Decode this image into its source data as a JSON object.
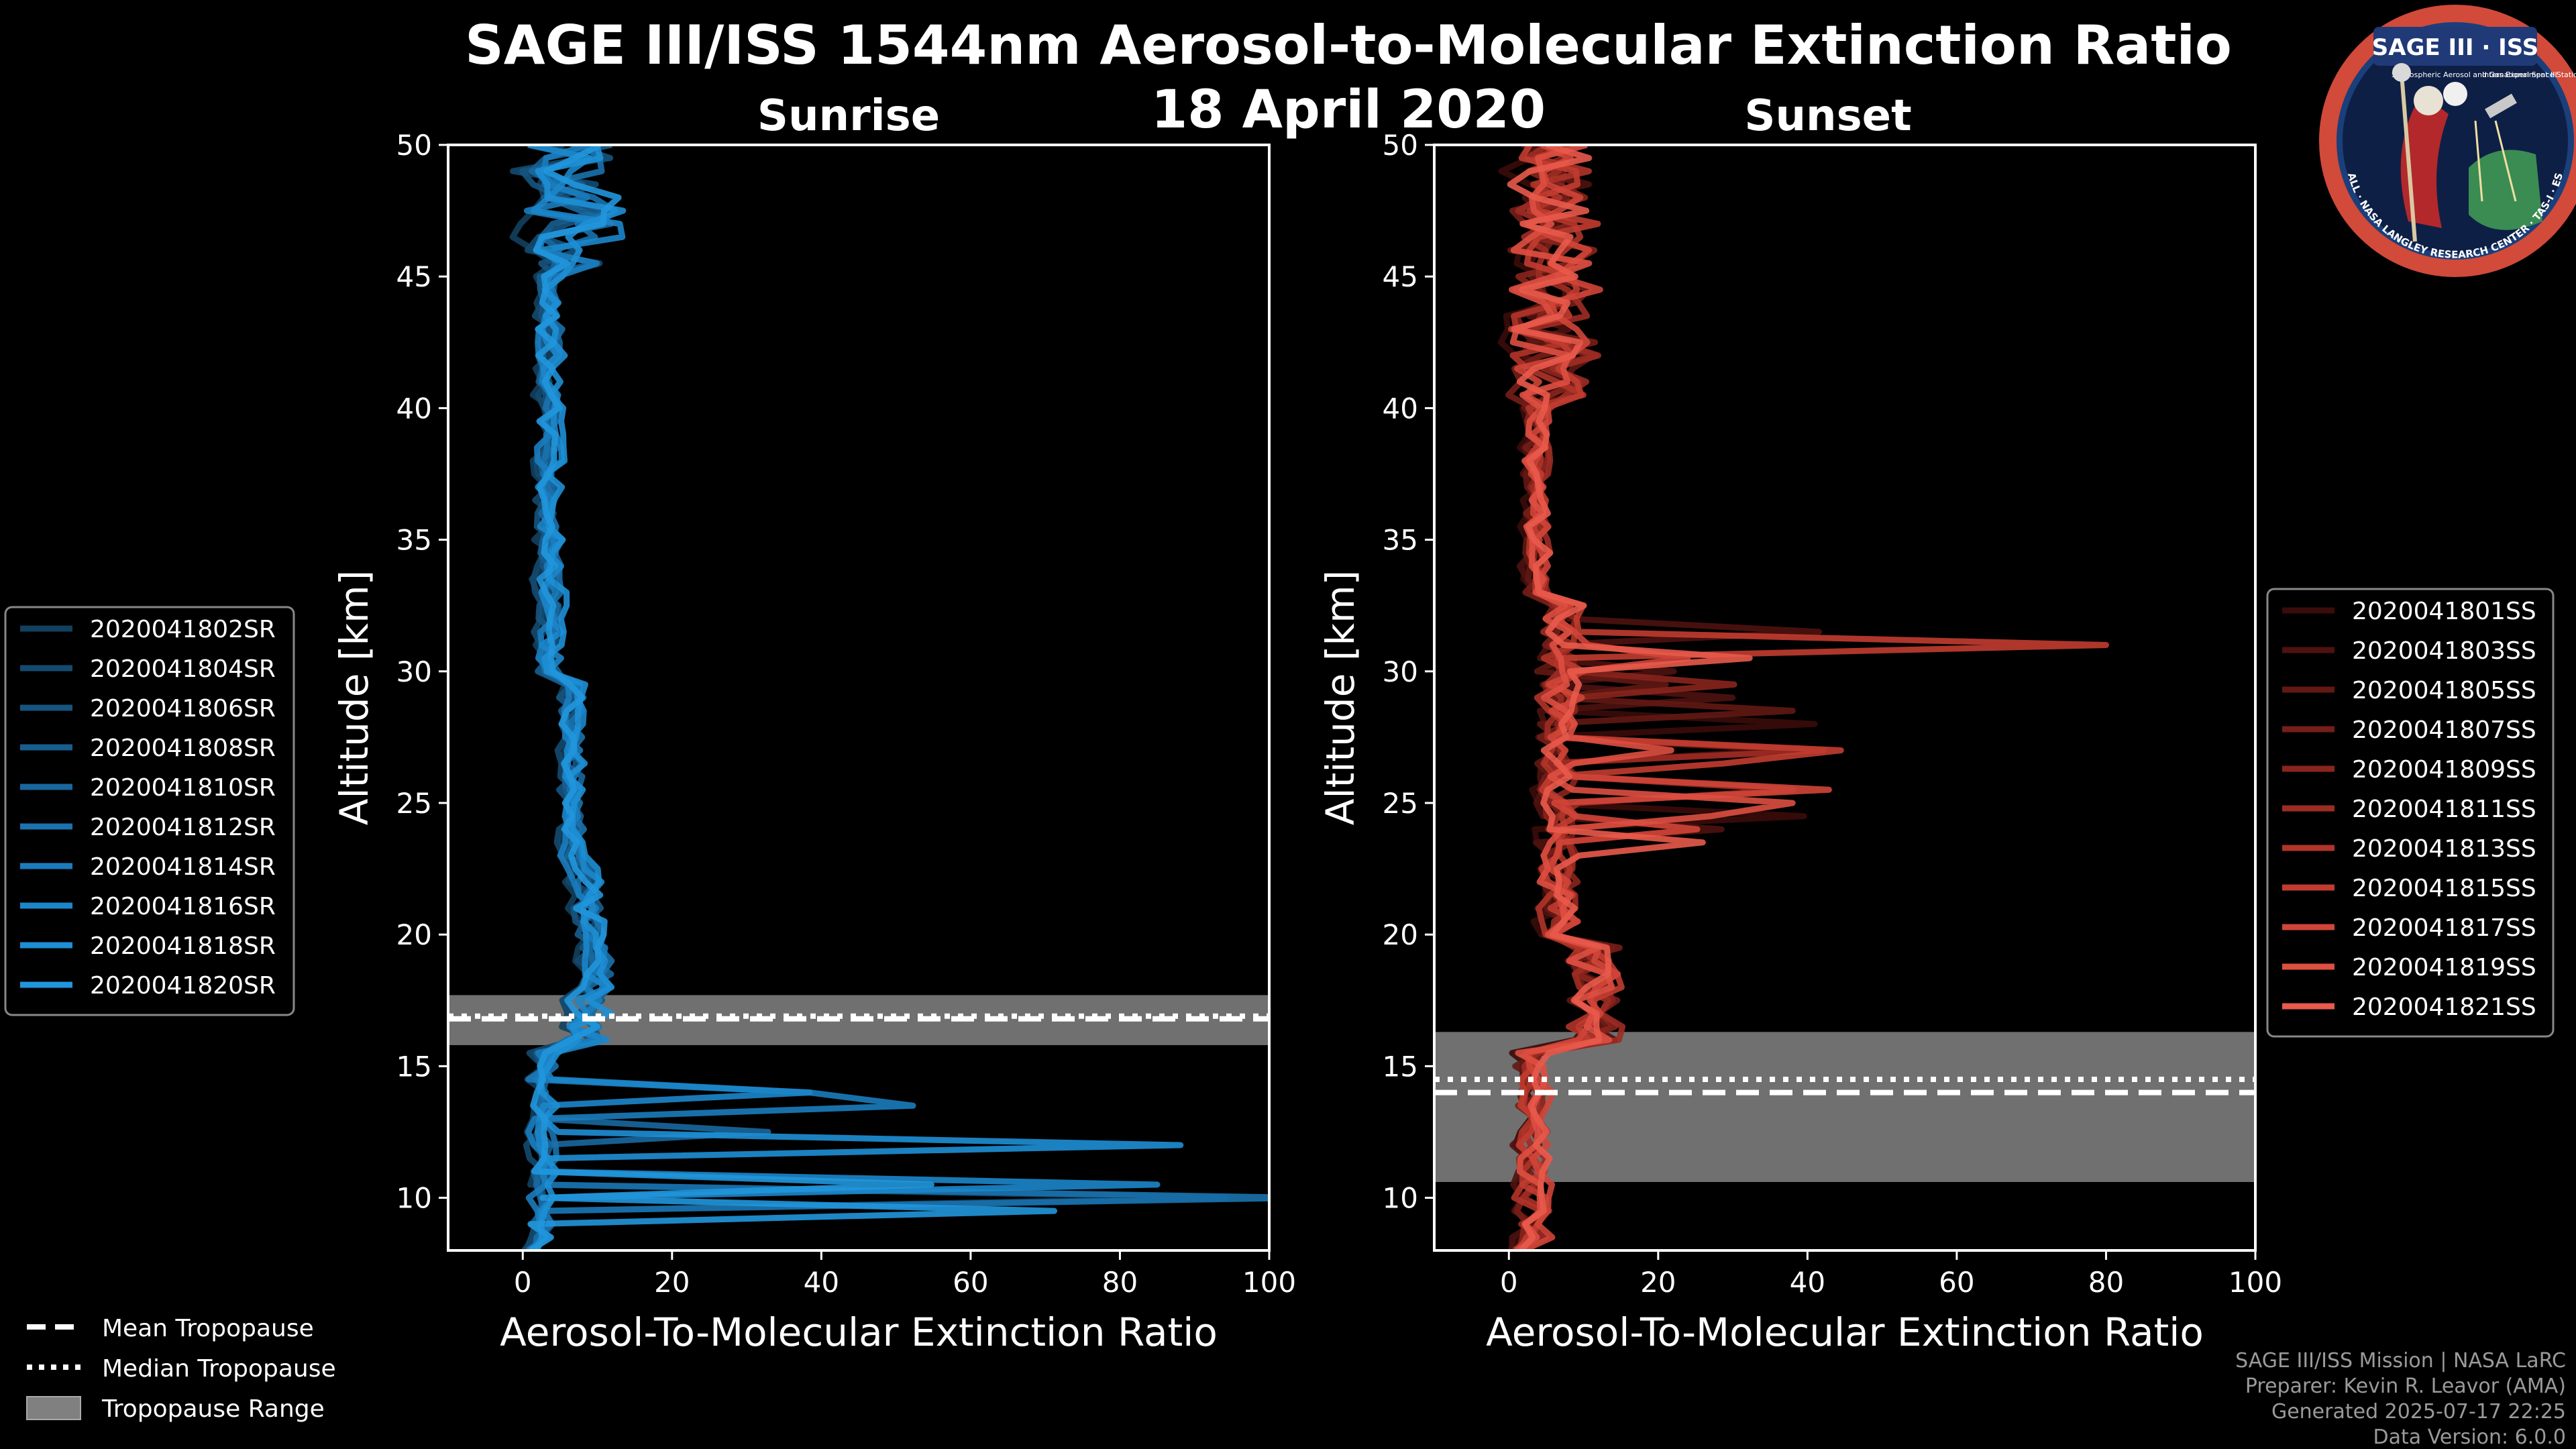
{
  "figure": {
    "title": "SAGE III/ISS 1544nm Aerosol-to-Molecular Extinction Ratio",
    "subtitle": "18 April 2020",
    "credits": [
      "SAGE III/ISS Mission | NASA LaRC",
      "Preparer: Kevin R. Leavor (AMA)",
      "Generated 2025-07-17 22:25",
      "Data Version: 6.0.0"
    ],
    "logo": {
      "text": "SAGE III · ISS",
      "sub_left": "Stratospheric Aerosol and Gas Experiment III",
      "sub_right": "International Space Station",
      "ring": "BALL · NASA LANGLEY RESEARCH CENTER · TAS-I · ESA"
    },
    "tropopause_legend": [
      {
        "label": "Mean Tropopause",
        "style": "dashed"
      },
      {
        "label": "Median Tropopause",
        "style": "dotted"
      },
      {
        "label": "Tropopause Range",
        "style": "patch"
      }
    ]
  },
  "chart_data": [
    {
      "type": "line",
      "title": "Sunrise",
      "xlabel": "Aerosol-To-Molecular Extinction Ratio",
      "ylabel": "Altitude [km]",
      "xlim": [
        -10,
        100
      ],
      "ylim": [
        8,
        50
      ],
      "xticks": [
        0,
        20,
        40,
        60,
        80,
        100
      ],
      "yticks": [
        10,
        15,
        20,
        25,
        30,
        35,
        40,
        45,
        50
      ],
      "color": "#1f8fd4",
      "tropopause": {
        "mean": 16.8,
        "median": 16.9,
        "range": [
          15.8,
          17.7
        ]
      },
      "legend_position": "left",
      "series": [
        {
          "name": "2020041802SR",
          "color": "#12405f"
        },
        {
          "name": "2020041804SR",
          "color": "#144a6f"
        },
        {
          "name": "2020041806SR",
          "color": "#16547f"
        },
        {
          "name": "2020041808SR",
          "color": "#175e8f"
        },
        {
          "name": "2020041810SR",
          "color": "#18689f"
        },
        {
          "name": "2020041812SR",
          "color": "#1a72ae"
        },
        {
          "name": "2020041814SR",
          "color": "#1b7cbd"
        },
        {
          "name": "2020041816SR",
          "color": "#1c86ca"
        },
        {
          "name": "2020041818SR",
          "color": "#1e8fd5"
        },
        {
          "name": "2020041820SR",
          "color": "#2196dc"
        }
      ]
    },
    {
      "type": "line",
      "title": "Sunset",
      "xlabel": "Aerosol-To-Molecular Extinction Ratio",
      "ylabel": "Altitude [km]",
      "xlim": [
        -10,
        100
      ],
      "ylim": [
        8,
        50
      ],
      "xticks": [
        0,
        20,
        40,
        60,
        80,
        100
      ],
      "yticks": [
        10,
        15,
        20,
        25,
        30,
        35,
        40,
        45,
        50
      ],
      "color": "#e05a4c",
      "tropopause": {
        "mean": 14.0,
        "median": 14.5,
        "range": [
          10.6,
          16.3
        ]
      },
      "legend_position": "right",
      "series": [
        {
          "name": "2020041801SS",
          "color": "#3a0c0a"
        },
        {
          "name": "2020041803SS",
          "color": "#4e120f"
        },
        {
          "name": "2020041805SS",
          "color": "#621813"
        },
        {
          "name": "2020041807SS",
          "color": "#761e18"
        },
        {
          "name": "2020041809SS",
          "color": "#8a251d"
        },
        {
          "name": "2020041811SS",
          "color": "#9d2c23"
        },
        {
          "name": "2020041813SS",
          "color": "#b03429"
        },
        {
          "name": "2020041815SS",
          "color": "#c13c30"
        },
        {
          "name": "2020041817SS",
          "color": "#d04538"
        },
        {
          "name": "2020041819SS",
          "color": "#dd4f41"
        },
        {
          "name": "2020041821SS",
          "color": "#e85a4b"
        }
      ]
    }
  ]
}
